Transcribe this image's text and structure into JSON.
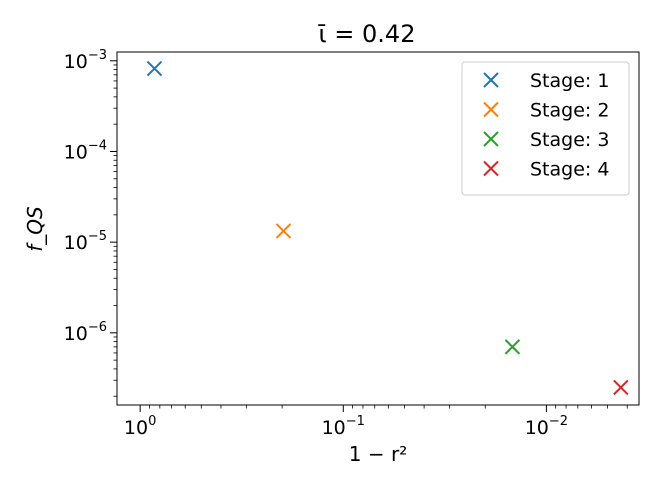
{
  "chart_data": {
    "type": "scatter",
    "title": "ῑ = 0.42",
    "xlabel": "1 − r²",
    "ylabel": "f_QS",
    "x_scale": "log",
    "y_scale": "log",
    "x_axis_reversed": true,
    "x_range": [
      1.3,
      0.0035
    ],
    "y_range": [
      1.6e-07,
      0.00125
    ],
    "x_ticks": [
      {
        "value": 1,
        "label": "10",
        "exp": "0"
      },
      {
        "value": 0.1,
        "label": "10",
        "exp": "−1"
      },
      {
        "value": 0.01,
        "label": "10",
        "exp": "−2"
      }
    ],
    "y_ticks": [
      {
        "value": 0.001,
        "label": "10",
        "exp": "−3"
      },
      {
        "value": 0.0001,
        "label": "10",
        "exp": "−4"
      },
      {
        "value": 1e-05,
        "label": "10",
        "exp": "−5"
      },
      {
        "value": 1e-06,
        "label": "10",
        "exp": "−6"
      }
    ],
    "legend_position": "top-right",
    "grid": false,
    "marker": "x",
    "series": [
      {
        "name": "Stage: 1",
        "color": "#1f77b4",
        "points": [
          {
            "x": 0.85,
            "y": 0.00082
          }
        ]
      },
      {
        "name": "Stage: 2",
        "color": "#ff7f0e",
        "points": [
          {
            "x": 0.197,
            "y": 1.33e-05
          }
        ]
      },
      {
        "name": "Stage: 3",
        "color": "#2ca02c",
        "points": [
          {
            "x": 0.0147,
            "y": 7e-07
          }
        ]
      },
      {
        "name": "Stage: 4",
        "color": "#d62728",
        "points": [
          {
            "x": 0.0043,
            "y": 2.5e-07
          }
        ]
      }
    ]
  }
}
